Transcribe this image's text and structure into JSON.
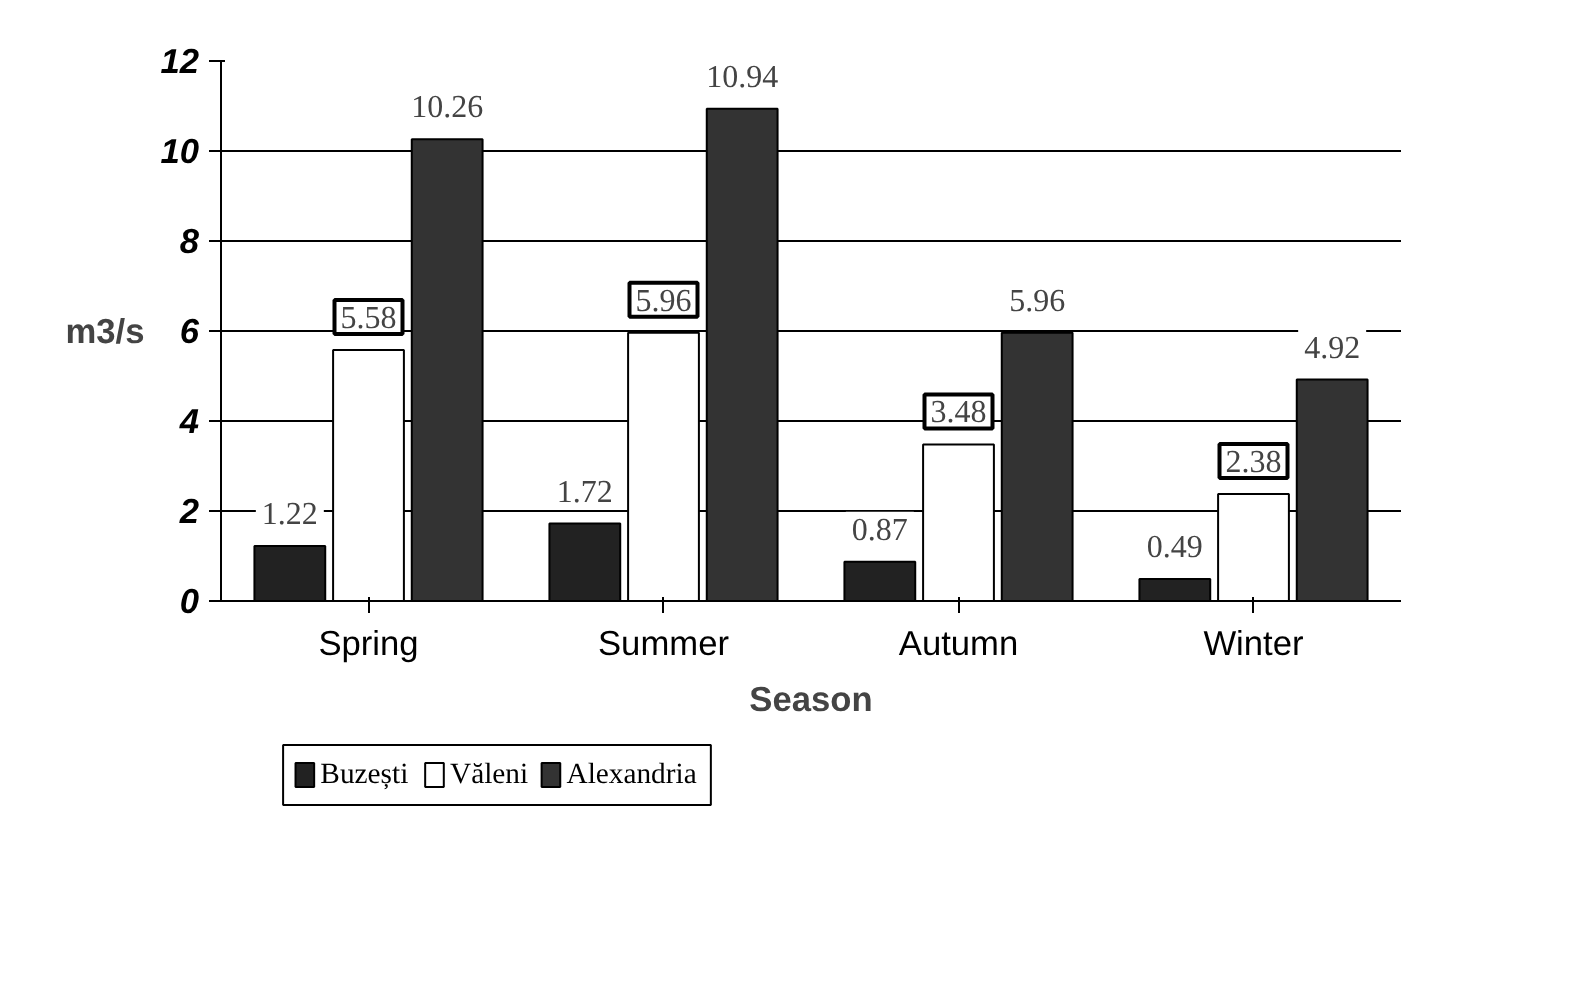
{
  "chart_data": {
    "type": "bar",
    "xlabel": "Season",
    "ylabel": "m3/s",
    "categories": [
      "Spring",
      "Summer",
      "Autumn",
      "Winter"
    ],
    "series": [
      {
        "name": "Buzești",
        "color": "#222222",
        "values": [
          1.22,
          1.72,
          0.87,
          0.49
        ]
      },
      {
        "name": "Văleni",
        "color": "#ffffff",
        "values": [
          5.58,
          5.96,
          3.48,
          2.38
        ]
      },
      {
        "name": "Alexandria",
        "color": "#333333",
        "values": [
          10.26,
          10.94,
          5.96,
          4.92
        ]
      }
    ],
    "ylim": [
      0,
      12
    ],
    "yticks": [
      0,
      2,
      4,
      6,
      8,
      10,
      12
    ],
    "grid": "y",
    "legend": "bottom left",
    "data_labels": true
  }
}
